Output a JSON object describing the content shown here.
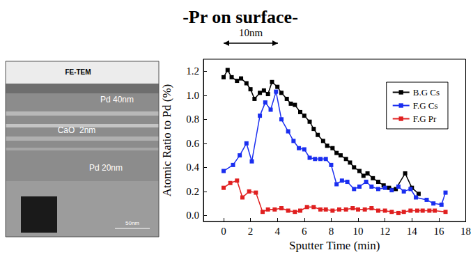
{
  "chart_data": {
    "type": "line",
    "title": "-Pr on surface-",
    "annotations": [
      "10nm"
    ],
    "image": {
      "labels": [
        "FE-TEM",
        "Pd 40nm",
        "CaO  2nm",
        "Pd 20nm",
        "50nm"
      ]
    },
    "xlabel": "Sputter Time (min)",
    "ylabel": "Atomic Ratio to Pd (%)",
    "xlim": [
      -1.5,
      18
    ],
    "xticks": [
      0,
      2,
      4,
      6,
      8,
      10,
      12,
      14,
      16,
      18
    ],
    "ylim": [
      -0.05,
      1.3
    ],
    "yticks": [
      {
        "value": 0,
        "label": "0.0"
      },
      0.2,
      0.4,
      0.6,
      0.8,
      {
        "value": 1,
        "label": "1.0"
      },
      1.2
    ],
    "legend": "upper right",
    "marker": "square",
    "grid": false,
    "series": [
      {
        "name": "B.G Cs",
        "color": "#000000",
        "x": [
          0,
          0.3,
          0.6,
          1.0,
          1.3,
          1.7,
          2.0,
          2.3,
          2.7,
          3.0,
          3.3,
          3.6,
          4.0,
          4.3,
          4.7,
          5.0,
          5.3,
          5.7,
          6.0,
          6.4,
          6.7,
          7.0,
          7.4,
          7.7,
          8.1,
          8.4,
          8.7,
          9.1,
          9.4,
          9.7,
          10.1,
          10.4,
          10.7,
          11.1,
          11.5,
          11.9,
          12.3,
          12.8,
          13.5,
          14.0,
          14.5
        ],
        "values": [
          1.15,
          1.21,
          1.15,
          1.12,
          1.14,
          1.1,
          1.05,
          0.97,
          1.02,
          1.04,
          1.01,
          1.11,
          1.07,
          1.02,
          0.97,
          0.93,
          0.92,
          0.86,
          0.83,
          0.78,
          0.72,
          0.67,
          0.62,
          0.58,
          0.56,
          0.52,
          0.5,
          0.47,
          0.44,
          0.4,
          0.37,
          0.33,
          0.35,
          0.31,
          0.28,
          0.25,
          0.23,
          0.22,
          0.35,
          0.23,
          0.18
        ]
      },
      {
        "name": "F.G Cs",
        "color": "#1a2ef0",
        "x": [
          0,
          0.7,
          1.2,
          1.7,
          2.1,
          2.7,
          3.1,
          3.5,
          3.9,
          4.3,
          4.8,
          5.2,
          5.6,
          6.0,
          6.4,
          6.8,
          7.2,
          7.6,
          8.0,
          8.4,
          8.8,
          9.2,
          9.7,
          10.1,
          10.6,
          11.0,
          11.5,
          12.0,
          12.5,
          13.0,
          13.4,
          13.9,
          14.3,
          15.1,
          15.6,
          16.2,
          16.5
        ],
        "values": [
          0.37,
          0.42,
          0.5,
          0.6,
          0.45,
          0.83,
          0.94,
          0.88,
          1.03,
          0.8,
          0.7,
          0.62,
          0.56,
          0.55,
          0.48,
          0.47,
          0.47,
          0.47,
          0.42,
          0.26,
          0.29,
          0.28,
          0.22,
          0.24,
          0.28,
          0.24,
          0.22,
          0.23,
          0.21,
          0.24,
          0.2,
          0.22,
          0.15,
          0.13,
          0.1,
          0.09,
          0.19
        ]
      },
      {
        "name": "F.G Pr",
        "color": "#e02020",
        "x": [
          0,
          0.5,
          1.0,
          1.4,
          1.9,
          2.4,
          2.9,
          3.3,
          3.8,
          4.3,
          4.8,
          5.3,
          5.7,
          6.2,
          6.7,
          7.2,
          7.6,
          8.1,
          8.6,
          9.1,
          9.6,
          10.0,
          10.5,
          11.0,
          11.5,
          12.0,
          12.5,
          13.0,
          13.4,
          13.9,
          14.4,
          14.8,
          15.3,
          15.7,
          16.5
        ],
        "values": [
          0.23,
          0.27,
          0.29,
          0.15,
          0.2,
          0.19,
          0.03,
          0.05,
          0.05,
          0.06,
          0.04,
          0.03,
          0.04,
          0.07,
          0.07,
          0.05,
          0.05,
          0.04,
          0.05,
          0.05,
          0.06,
          0.05,
          0.05,
          0.06,
          0.04,
          0.04,
          0.03,
          0.02,
          0.03,
          0.04,
          0.04,
          0.04,
          0.04,
          0.04,
          0.03
        ]
      }
    ]
  }
}
